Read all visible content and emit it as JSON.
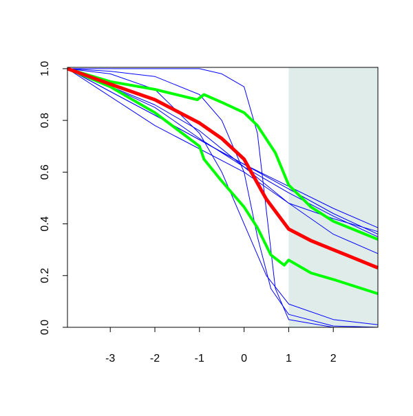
{
  "chart_data": {
    "type": "line",
    "xlim": [
      -3.96,
      3.0
    ],
    "ylim": [
      0,
      1.005
    ],
    "xticks": [
      -3,
      -2,
      -1,
      0,
      1,
      2
    ],
    "yticks": [
      {
        "value": 0,
        "label": "0.0"
      },
      {
        "value": 0.2,
        "label": "0.2"
      },
      {
        "value": 0.4,
        "label": "0.4"
      },
      {
        "value": 0.6,
        "label": "0.6"
      },
      {
        "value": 0.8,
        "label": "0.8"
      },
      {
        "value": 1,
        "label": "1.0"
      }
    ],
    "shaded_region": {
      "xmin": 1,
      "xmax": 3.0,
      "color": "#dfecea"
    },
    "series": [
      {
        "color": "#0000ff",
        "line_width": 1,
        "x": [
          -3.96,
          -2,
          0,
          2,
          3
        ],
        "values": [
          1,
          0.82,
          0.63,
          0.44,
          0.36
        ]
      },
      {
        "color": "#0000ff",
        "line_width": 1,
        "x": [
          -3.96,
          -2,
          0,
          2,
          3
        ],
        "values": [
          1,
          0.82,
          0.63,
          0.46,
          0.385
        ]
      },
      {
        "color": "#0000ff",
        "line_width": 1,
        "x": [
          -3.96,
          -2,
          0,
          2,
          3
        ],
        "values": [
          1,
          0.78,
          0.6,
          0.36,
          0.285
        ]
      },
      {
        "color": "#0000ff",
        "line_width": 1,
        "x": [
          -3.96,
          -1,
          -0.5,
          0,
          0.3,
          0.5,
          0.7,
          1,
          2,
          3
        ],
        "values": [
          1,
          1,
          0.98,
          0.93,
          0.75,
          0.45,
          0.15,
          0.03,
          0,
          0
        ]
      },
      {
        "color": "#0000ff",
        "line_width": 1,
        "x": [
          -3.96,
          -3,
          -2,
          -1,
          -0.5,
          0,
          0.3,
          0.6,
          1,
          2,
          3
        ],
        "values": [
          1,
          0.99,
          0.97,
          0.9,
          0.8,
          0.6,
          0.35,
          0.15,
          0.05,
          0.005,
          0
        ]
      },
      {
        "color": "#0000ff",
        "line_width": 1,
        "x": [
          -3.96,
          -3,
          -2,
          -1,
          -0.5,
          0,
          0.5,
          1,
          2,
          3
        ],
        "values": [
          1,
          0.98,
          0.92,
          0.75,
          0.6,
          0.4,
          0.2,
          0.09,
          0.03,
          0.01
        ]
      },
      {
        "color": "#0000ff",
        "line_width": 1,
        "x": [
          -3.96,
          -3,
          -2,
          -1,
          0,
          1,
          2,
          3
        ],
        "values": [
          1,
          0.93,
          0.85,
          0.73,
          0.62,
          0.52,
          0.43,
          0.35
        ]
      },
      {
        "color": "#0000ff",
        "line_width": 1,
        "x": [
          -3.96,
          -2,
          -1,
          0,
          1,
          2,
          3
        ],
        "values": [
          1,
          0.86,
          0.76,
          0.62,
          0.48,
          0.42,
          0.37
        ]
      },
      {
        "color": "#00ff00",
        "line_width": 4,
        "x": [
          -3.96,
          -3,
          -2,
          -1.05,
          -0.9,
          -0.5,
          0,
          0.3,
          0.7,
          1,
          1.5,
          2,
          3
        ],
        "values": [
          1,
          0.95,
          0.92,
          0.88,
          0.9,
          0.87,
          0.83,
          0.78,
          0.675,
          0.55,
          0.465,
          0.41,
          0.34
        ]
      },
      {
        "color": "#00ff00",
        "line_width": 4,
        "x": [
          -3.96,
          -3,
          -2,
          -1,
          -0.9,
          -0.5,
          0,
          0.3,
          0.6,
          0.9,
          1,
          1.5,
          2,
          3
        ],
        "values": [
          1,
          0.93,
          0.83,
          0.7,
          0.65,
          0.565,
          0.465,
          0.385,
          0.28,
          0.24,
          0.26,
          0.21,
          0.185,
          0.13
        ]
      },
      {
        "color": "#ff0000",
        "line_width": 5,
        "x": [
          -3.96,
          -3,
          -2,
          -1,
          -0.5,
          0,
          0.5,
          1,
          1.5,
          2,
          2.5,
          3
        ],
        "values": [
          1,
          0.94,
          0.88,
          0.79,
          0.73,
          0.65,
          0.495,
          0.38,
          0.335,
          0.3,
          0.265,
          0.23
        ]
      }
    ]
  }
}
